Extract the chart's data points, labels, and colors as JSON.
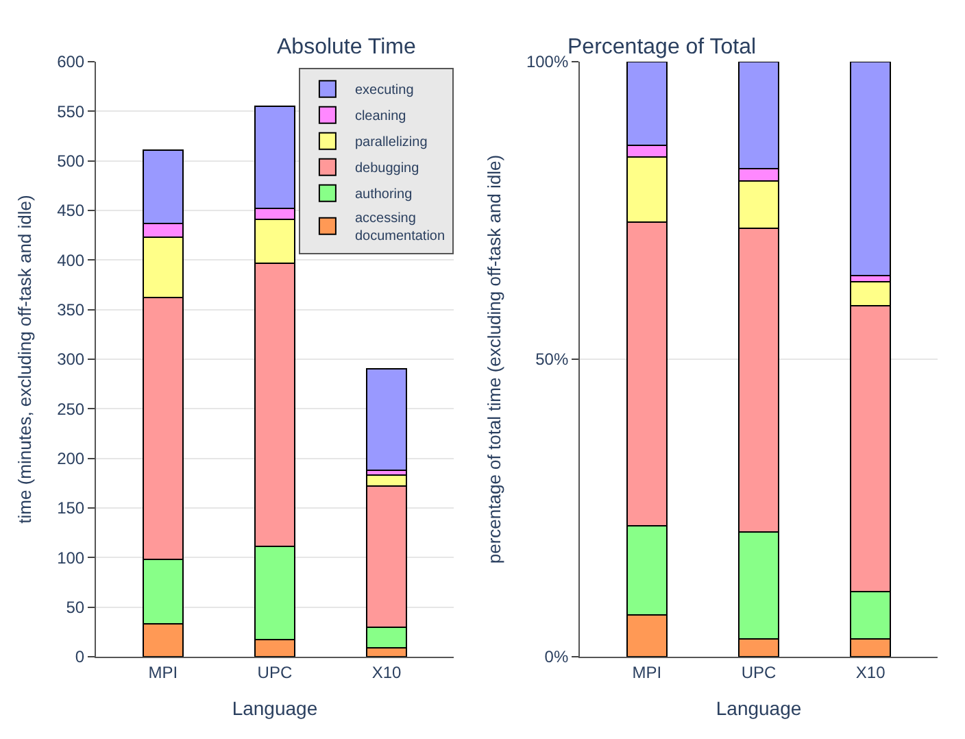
{
  "chart_data": [
    {
      "type": "bar",
      "title": "Absolute Time",
      "xlabel": "Language",
      "ylabel": "time (minutes, excluding off-task and idle)",
      "categories": [
        "MPI",
        "UPC",
        "X10"
      ],
      "stacked": true,
      "ylim": [
        0,
        600
      ],
      "yticks": [
        0,
        50,
        100,
        150,
        200,
        250,
        300,
        350,
        400,
        450,
        500,
        550,
        600
      ],
      "grid": "y",
      "legend": "top right",
      "series": [
        {
          "name": "accessing documentation",
          "color": "#ff9955",
          "values": [
            33,
            17,
            9
          ]
        },
        {
          "name": "authoring",
          "color": "#88ff88",
          "values": [
            65,
            94,
            21
          ]
        },
        {
          "name": "debugging",
          "color": "#ff9999",
          "values": [
            264,
            286,
            142
          ]
        },
        {
          "name": "parallelizing",
          "color": "#ffff88",
          "values": [
            61,
            44,
            11
          ]
        },
        {
          "name": "cleaning",
          "color": "#ff88ff",
          "values": [
            14,
            11,
            5
          ]
        },
        {
          "name": "executing",
          "color": "#9999ff",
          "values": [
            74,
            103,
            102
          ]
        }
      ]
    },
    {
      "type": "bar",
      "title": "Percentage of Total",
      "xlabel": "Language",
      "ylabel": "percentage of total time (excluding off-task and idle)",
      "categories": [
        "MPI",
        "UPC",
        "X10"
      ],
      "stacked": true,
      "ylim": [
        0,
        100
      ],
      "yticks": [
        {
          "value": 0,
          "label": "0%"
        },
        {
          "value": 50,
          "label": "50%"
        },
        {
          "value": 100,
          "label": "100%"
        }
      ],
      "grid": "y",
      "series": [
        {
          "color": "#ff9955",
          "values": [
            7,
            3,
            3
          ]
        },
        {
          "color": "#88ff88",
          "values": [
            15,
            18,
            8
          ]
        },
        {
          "color": "#ff9999",
          "values": [
            51,
            51,
            48
          ]
        },
        {
          "color": "#ffff88",
          "values": [
            11,
            8,
            4
          ]
        },
        {
          "color": "#ff88ff",
          "values": [
            2,
            2,
            1
          ]
        },
        {
          "color": "#9999ff",
          "values": [
            14,
            18,
            36
          ]
        }
      ]
    }
  ]
}
